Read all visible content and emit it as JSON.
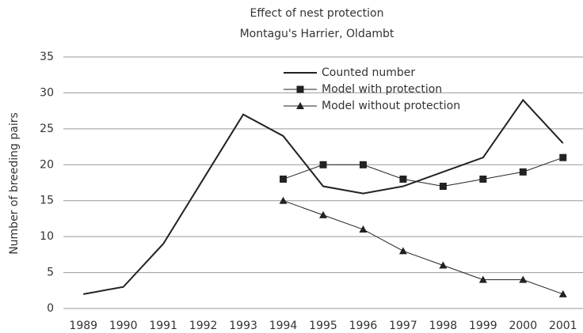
{
  "chart_data": {
    "type": "line",
    "title": "Effect of nest protection",
    "subtitle": "Montagu's Harrier, Oldambt",
    "y_label": "Number of breeding pairs",
    "categories": [
      "1989",
      "1990",
      "1991",
      "1992",
      "1993",
      "1994",
      "1995",
      "1996",
      "1997",
      "1998",
      "1999",
      "2000",
      "2001"
    ],
    "series": [
      {
        "name": "Counted number",
        "color": "#222222",
        "marker": "none",
        "values": [
          2,
          3,
          9,
          18,
          27,
          24,
          17,
          16,
          17,
          19,
          21,
          29,
          23
        ]
      },
      {
        "name": "Model with protection",
        "color": "#222222",
        "marker": "square",
        "values": [
          null,
          null,
          null,
          null,
          null,
          18,
          20,
          20,
          18,
          17,
          18,
          19,
          21
        ]
      },
      {
        "name": "Model without protection",
        "color": "#222222",
        "marker": "triangle",
        "values": [
          null,
          null,
          null,
          null,
          null,
          15,
          13,
          11,
          8,
          6,
          4,
          4,
          2
        ]
      }
    ],
    "ylim": [
      0,
      35
    ],
    "yticks": [
      0,
      5,
      10,
      15,
      20,
      25,
      30,
      35
    ],
    "grid": true,
    "legend": "top-right"
  }
}
